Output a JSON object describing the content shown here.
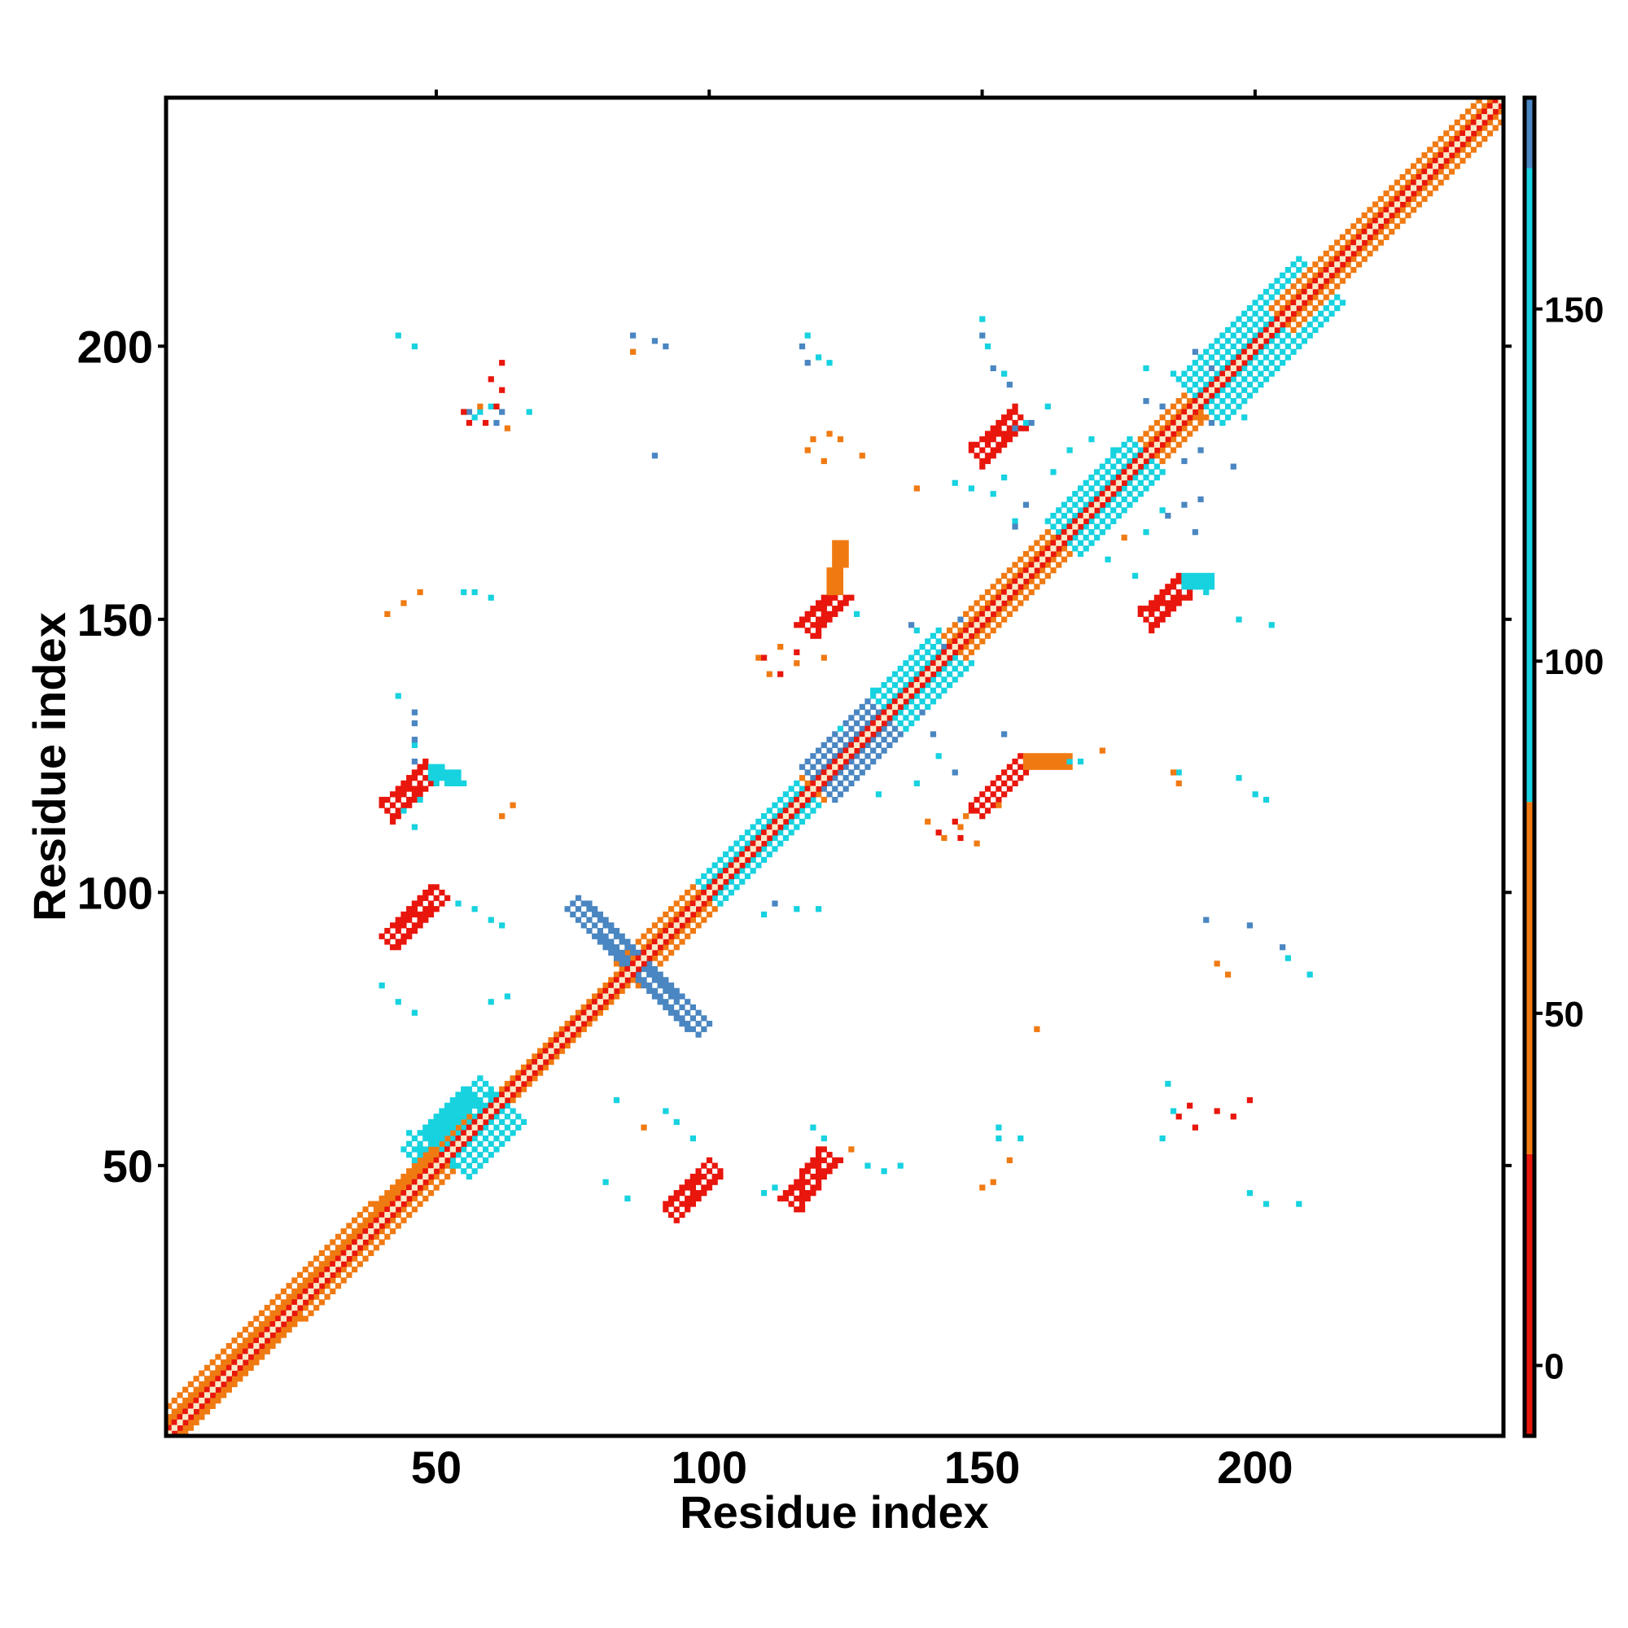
{
  "chart_data": {
    "type": "heatmap",
    "xlabel": "Residue index",
    "ylabel": "Residue index",
    "xlim": [
      1,
      245
    ],
    "ylim": [
      1,
      245
    ],
    "xticks": [
      50,
      100,
      150,
      200
    ],
    "yticks": [
      50,
      100,
      150,
      200
    ],
    "colorbar": {
      "range": [
        -10,
        180
      ],
      "ticks": [
        0,
        50,
        100,
        150
      ],
      "segments": [
        {
          "from": -10,
          "to": 30,
          "color": "#e8160c"
        },
        {
          "from": 30,
          "to": 80,
          "color": "#f07a12"
        },
        {
          "from": 80,
          "to": 170,
          "color": "#17d2df"
        },
        {
          "from": 170,
          "to": 180,
          "color": "#4a86c1"
        }
      ]
    },
    "colors": {
      "red": "#e8160c",
      "orange": "#f07a12",
      "light_orange": "#f4a020",
      "cyan": "#17d2df",
      "blue": "#4a86c1",
      "diag": "#f9e9c8"
    },
    "diagonal_extent": [
      1,
      245
    ],
    "clusters": [
      {
        "kind": "band",
        "from": [
          2,
          3
        ],
        "to": [
          62,
          62
        ],
        "w": 3,
        "color": "orange"
      },
      {
        "kind": "band",
        "from": [
          52,
          52
        ],
        "to": [
          62,
          62
        ],
        "w": 5,
        "color": "cyan"
      },
      {
        "kind": "band",
        "from": [
          45,
          52
        ],
        "to": [
          56,
          63
        ],
        "w": 2,
        "color": "cyan"
      },
      {
        "kind": "band",
        "from": [
          85,
          85
        ],
        "to": [
          130,
          130
        ],
        "w": 3,
        "color": "orange"
      },
      {
        "kind": "band",
        "from": [
          100,
          100
        ],
        "to": [
          118,
          118
        ],
        "w": 3,
        "color": "cyan"
      },
      {
        "kind": "band",
        "from": [
          125,
          125
        ],
        "to": [
          145,
          145
        ],
        "w": 4,
        "color": "cyan"
      },
      {
        "kind": "band",
        "from": [
          120,
          120
        ],
        "to": [
          132,
          132
        ],
        "w": 4,
        "color": "blue"
      },
      {
        "kind": "band",
        "from": [
          145,
          145
        ],
        "to": [
          205,
          205
        ],
        "w": 3,
        "color": "orange"
      },
      {
        "kind": "band",
        "from": [
          165,
          165
        ],
        "to": [
          180,
          180
        ],
        "w": 4,
        "color": "cyan"
      },
      {
        "kind": "band",
        "from": [
          190,
          190
        ],
        "to": [
          212,
          212
        ],
        "w": 5,
        "color": "cyan"
      },
      {
        "kind": "band",
        "from": [
          205,
          205
        ],
        "to": [
          245,
          245
        ],
        "w": 3,
        "color": "orange"
      },
      {
        "kind": "band",
        "from": [
          75,
          98
        ],
        "to": [
          99,
          75
        ],
        "w": 2,
        "color": "blue"
      },
      {
        "kind": "band",
        "from": [
          41,
          91
        ],
        "to": [
          51,
          100
        ],
        "w": 2,
        "color": "red"
      },
      {
        "kind": "band",
        "from": [
          41,
          115
        ],
        "to": [
          49,
          122
        ],
        "w": 2,
        "color": "red"
      },
      {
        "kind": "band",
        "from": [
          49,
          122
        ],
        "to": [
          54,
          121
        ],
        "w": 1,
        "color": "cyan"
      },
      {
        "kind": "band",
        "from": [
          93,
          41
        ],
        "to": [
          101,
          50
        ],
        "w": 2,
        "color": "red"
      },
      {
        "kind": "band",
        "from": [
          115,
          43
        ],
        "to": [
          122,
          52
        ],
        "w": 2,
        "color": "red"
      },
      {
        "kind": "band",
        "from": [
          118,
          148
        ],
        "to": [
          124,
          155
        ],
        "w": 2,
        "color": "red"
      },
      {
        "kind": "band",
        "from": [
          123,
          155
        ],
        "to": [
          124,
          164
        ],
        "w": 1,
        "color": "orange"
      },
      {
        "kind": "band",
        "from": [
          149,
          115
        ],
        "to": [
          158,
          124
        ],
        "w": 2,
        "color": "red"
      },
      {
        "kind": "band",
        "from": [
          158,
          124
        ],
        "to": [
          166,
          124
        ],
        "w": 1,
        "color": "orange"
      },
      {
        "kind": "band",
        "from": [
          149,
          180
        ],
        "to": [
          157,
          187
        ],
        "w": 2,
        "color": "red"
      },
      {
        "kind": "band",
        "from": [
          180,
          150
        ],
        "to": [
          187,
          156
        ],
        "w": 2,
        "color": "red"
      },
      {
        "kind": "band",
        "from": [
          187,
          157
        ],
        "to": [
          192,
          157
        ],
        "w": 1,
        "color": "cyan"
      },
      {
        "kind": "pts",
        "color": "cyan",
        "p": [
          [
            43,
            202
          ],
          [
            46,
            200
          ],
          [
            57,
            187
          ],
          [
            58,
            188
          ],
          [
            60,
            189
          ],
          [
            67,
            188
          ],
          [
            55,
            155
          ],
          [
            57,
            155
          ],
          [
            60,
            154
          ],
          [
            43,
            136
          ],
          [
            46,
            133
          ],
          [
            46,
            127
          ],
          [
            50,
            120
          ],
          [
            55,
            120
          ],
          [
            46,
            112
          ],
          [
            44,
            115
          ],
          [
            47,
            117
          ],
          [
            54,
            98
          ],
          [
            57,
            97
          ],
          [
            60,
            95
          ],
          [
            62,
            94
          ],
          [
            63,
            81
          ],
          [
            60,
            80
          ],
          [
            40,
            83
          ],
          [
            43,
            80
          ],
          [
            46,
            78
          ],
          [
            52,
            60
          ],
          [
            55,
            57
          ],
          [
            58,
            61
          ],
          [
            60,
            63
          ],
          [
            45,
            56
          ],
          [
            47,
            53
          ],
          [
            53,
            50
          ],
          [
            83,
            62
          ],
          [
            92,
            60
          ],
          [
            94,
            58
          ],
          [
            97,
            55
          ],
          [
            81,
            47
          ],
          [
            85,
            44
          ],
          [
            112,
            46
          ],
          [
            110,
            45
          ],
          [
            119,
            57
          ],
          [
            121,
            55
          ],
          [
            129,
            50
          ],
          [
            132,
            49
          ],
          [
            135,
            50
          ],
          [
            153,
            57
          ],
          [
            153,
            55
          ],
          [
            157,
            55
          ],
          [
            166,
            124
          ],
          [
            168,
            124
          ],
          [
            186,
            122
          ],
          [
            200,
            118
          ],
          [
            202,
            117
          ],
          [
            197,
            121
          ],
          [
            206,
            88
          ],
          [
            210,
            85
          ],
          [
            199,
            45
          ],
          [
            202,
            43
          ],
          [
            208,
            43
          ],
          [
            184,
            65
          ],
          [
            185,
            60
          ],
          [
            183,
            55
          ],
          [
            152,
            173
          ],
          [
            156,
            168
          ],
          [
            162,
            189
          ],
          [
            158,
            186
          ],
          [
            150,
            205
          ],
          [
            151,
            200
          ],
          [
            148,
            174
          ],
          [
            154,
            195
          ],
          [
            138,
            148
          ],
          [
            140,
            140
          ],
          [
            145,
            146
          ],
          [
            127,
            151
          ],
          [
            130,
            137
          ],
          [
            135,
            135
          ],
          [
            124,
            130
          ],
          [
            131,
            118
          ],
          [
            138,
            120
          ],
          [
            142,
            125
          ],
          [
            113,
            115
          ],
          [
            117,
            113
          ],
          [
            116,
            97
          ],
          [
            110,
            96
          ],
          [
            120,
            97
          ],
          [
            118,
            202
          ],
          [
            120,
            198
          ],
          [
            122,
            197
          ],
          [
            173,
            161
          ],
          [
            178,
            158
          ],
          [
            191,
            155
          ],
          [
            197,
            150
          ],
          [
            203,
            149
          ],
          [
            170,
            183
          ],
          [
            174,
            181
          ],
          [
            178,
            176
          ],
          [
            177,
            171
          ],
          [
            180,
            166
          ],
          [
            183,
            170
          ],
          [
            180,
            196
          ],
          [
            185,
            195
          ],
          [
            190,
            190
          ],
          [
            195,
            189
          ],
          [
            198,
            187
          ],
          [
            163,
            177
          ],
          [
            166,
            181
          ],
          [
            154,
            176
          ],
          [
            145,
            175
          ]
        ]
      },
      {
        "kind": "pts",
        "color": "blue",
        "p": [
          [
            86,
            202
          ],
          [
            90,
            201
          ],
          [
            92,
            200
          ],
          [
            90,
            180
          ],
          [
            117,
            200
          ],
          [
            118,
            197
          ],
          [
            150,
            202
          ],
          [
            152,
            196
          ],
          [
            155,
            193
          ],
          [
            156,
            185
          ],
          [
            159,
            186
          ],
          [
            180,
            190
          ],
          [
            183,
            189
          ],
          [
            187,
            187
          ],
          [
            192,
            186
          ],
          [
            189,
            199
          ],
          [
            192,
            196
          ],
          [
            112,
            98
          ],
          [
            139,
            133
          ],
          [
            141,
            129
          ],
          [
            145,
            122
          ],
          [
            154,
            129
          ],
          [
            143,
            145
          ],
          [
            146,
            150
          ],
          [
            191,
            95
          ],
          [
            199,
            94
          ],
          [
            205,
            90
          ],
          [
            184,
            169
          ],
          [
            187,
            171
          ],
          [
            190,
            172
          ],
          [
            189,
            166
          ],
          [
            187,
            179
          ],
          [
            190,
            181
          ],
          [
            196,
            178
          ],
          [
            56,
            188
          ],
          [
            62,
            188
          ],
          [
            61,
            186
          ],
          [
            156,
            167
          ],
          [
            158,
            171
          ],
          [
            137,
            149
          ],
          [
            46,
            133
          ],
          [
            46,
            131
          ],
          [
            46,
            128
          ],
          [
            46,
            124
          ]
        ]
      },
      {
        "kind": "pts",
        "color": "orange",
        "p": [
          [
            86,
            199
          ],
          [
            119,
            183
          ],
          [
            122,
            184
          ],
          [
            124,
            183
          ],
          [
            118,
            181
          ],
          [
            121,
            179
          ],
          [
            128,
            180
          ],
          [
            138,
            174
          ],
          [
            113,
            145
          ],
          [
            116,
            142
          ],
          [
            121,
            143
          ],
          [
            109,
            143
          ],
          [
            111,
            140
          ],
          [
            41,
            151
          ],
          [
            44,
            153
          ],
          [
            47,
            155
          ],
          [
            64,
            116
          ],
          [
            62,
            114
          ],
          [
            97,
            95
          ],
          [
            100,
            96
          ],
          [
            88,
            57
          ],
          [
            126,
            53
          ],
          [
            150,
            46
          ],
          [
            152,
            47
          ],
          [
            155,
            51
          ],
          [
            190,
            187
          ],
          [
            185,
            122
          ],
          [
            186,
            120
          ],
          [
            195,
            85
          ],
          [
            193,
            87
          ],
          [
            160,
            75
          ],
          [
            172,
            126
          ],
          [
            176,
            165
          ],
          [
            143,
            110
          ],
          [
            146,
            112
          ],
          [
            149,
            109
          ],
          [
            147,
            114
          ],
          [
            140,
            113
          ],
          [
            153,
            116
          ],
          [
            63,
            185
          ],
          [
            58,
            189
          ]
        ]
      },
      {
        "kind": "pts",
        "color": "red",
        "p": [
          [
            60,
            194
          ],
          [
            62,
            197
          ],
          [
            62,
            192
          ],
          [
            61,
            189
          ],
          [
            59,
            186
          ],
          [
            56,
            186
          ],
          [
            55,
            188
          ],
          [
            193,
            60
          ],
          [
            199,
            62
          ],
          [
            196,
            59
          ],
          [
            188,
            61
          ],
          [
            186,
            59
          ],
          [
            189,
            57
          ],
          [
            110,
            143
          ],
          [
            113,
            140
          ],
          [
            116,
            144
          ],
          [
            146,
            110
          ],
          [
            142,
            111
          ],
          [
            145,
            113
          ],
          [
            148,
            115
          ]
        ]
      }
    ]
  }
}
